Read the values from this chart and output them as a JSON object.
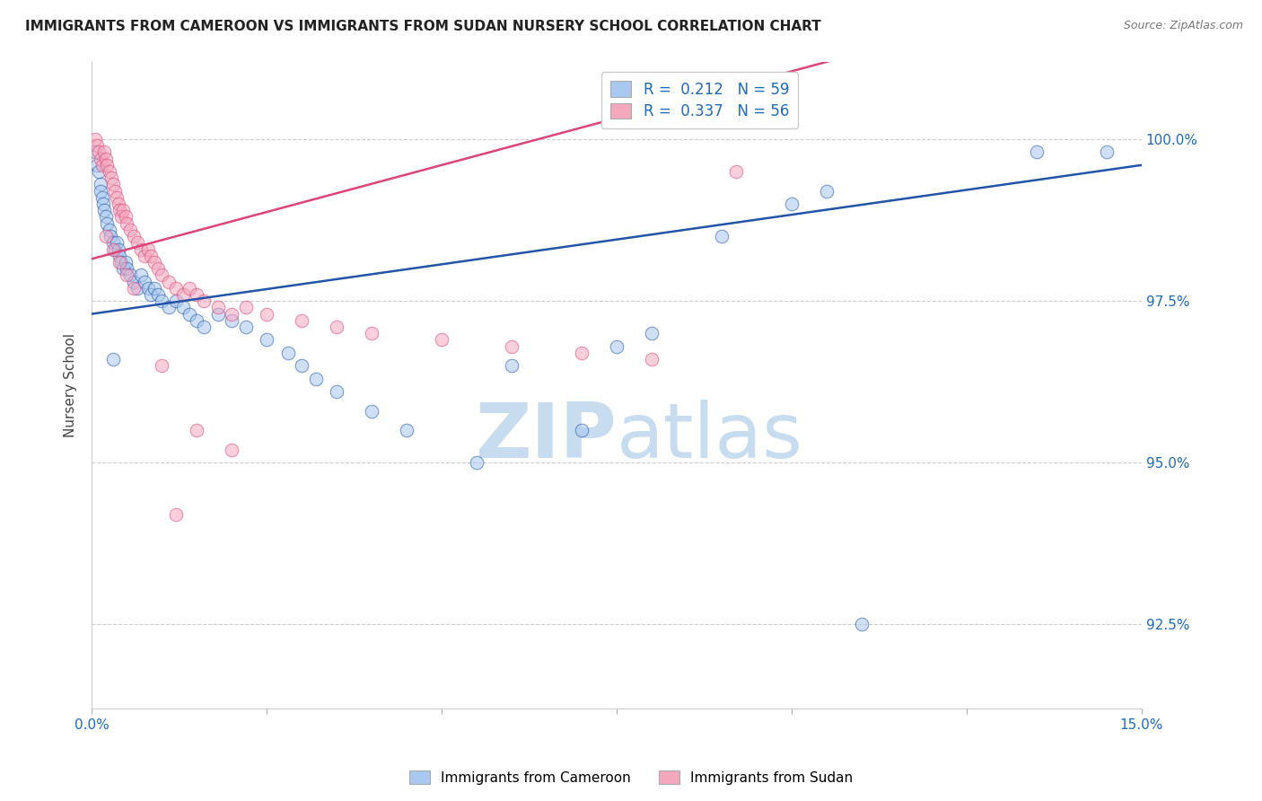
{
  "title": "IMMIGRANTS FROM CAMEROON VS IMMIGRANTS FROM SUDAN NURSERY SCHOOL CORRELATION CHART",
  "source": "Source: ZipAtlas.com",
  "ylabel": "Nursery School",
  "ytick_labels": [
    "92.5%",
    "95.0%",
    "97.5%",
    "100.0%"
  ],
  "ytick_values": [
    92.5,
    95.0,
    97.5,
    100.0
  ],
  "xmin": 0.0,
  "xmax": 15.0,
  "ymin": 91.2,
  "ymax": 101.2,
  "legend_blue_r_val": "0.212",
  "legend_blue_n_val": "59",
  "legend_pink_r_val": "0.337",
  "legend_pink_n_val": "56",
  "blue_color": "#A8C8F0",
  "pink_color": "#F4A8BE",
  "blue_line_color": "#2255AA",
  "pink_line_color": "#DD4477",
  "title_color": "#222222",
  "source_color": "#777777",
  "axis_label_color": "#1E6BB8",
  "grid_color": "#CCCCCC",
  "watermark_color": "#C8DCF0",
  "blue_scatter_x": [
    0.05,
    0.08,
    0.1,
    0.12,
    0.13,
    0.15,
    0.17,
    0.18,
    0.2,
    0.22,
    0.25,
    0.27,
    0.3,
    0.33,
    0.35,
    0.38,
    0.4,
    0.42,
    0.45,
    0.48,
    0.5,
    0.55,
    0.6,
    0.65,
    0.7,
    0.75,
    0.8,
    0.85,
    0.9,
    0.95,
    1.0,
    1.1,
    1.2,
    1.3,
    1.4,
    1.5,
    1.6,
    1.8,
    2.0,
    2.2,
    2.5,
    2.8,
    3.0,
    3.2,
    3.5,
    4.0,
    4.5,
    5.5,
    6.0,
    7.0,
    7.5,
    8.0,
    9.0,
    10.0,
    10.5,
    11.0,
    13.5,
    14.5,
    0.3
  ],
  "blue_scatter_y": [
    99.8,
    99.6,
    99.5,
    99.3,
    99.2,
    99.1,
    99.0,
    98.9,
    98.8,
    98.7,
    98.6,
    98.5,
    98.4,
    98.3,
    98.4,
    98.3,
    98.2,
    98.1,
    98.0,
    98.1,
    98.0,
    97.9,
    97.8,
    97.7,
    97.9,
    97.8,
    97.7,
    97.6,
    97.7,
    97.6,
    97.5,
    97.4,
    97.5,
    97.4,
    97.3,
    97.2,
    97.1,
    97.3,
    97.2,
    97.1,
    96.9,
    96.7,
    96.5,
    96.3,
    96.1,
    95.8,
    95.5,
    95.0,
    96.5,
    95.5,
    96.8,
    97.0,
    98.5,
    99.0,
    99.2,
    92.5,
    99.8,
    99.8,
    96.6
  ],
  "pink_scatter_x": [
    0.05,
    0.08,
    0.1,
    0.12,
    0.15,
    0.18,
    0.2,
    0.22,
    0.25,
    0.28,
    0.3,
    0.33,
    0.35,
    0.38,
    0.4,
    0.42,
    0.45,
    0.48,
    0.5,
    0.55,
    0.6,
    0.65,
    0.7,
    0.75,
    0.8,
    0.85,
    0.9,
    0.95,
    1.0,
    1.1,
    1.2,
    1.3,
    1.4,
    1.5,
    1.6,
    1.8,
    2.0,
    2.2,
    2.5,
    3.0,
    3.5,
    4.0,
    5.0,
    6.0,
    7.0,
    8.0,
    9.2,
    0.2,
    0.3,
    0.4,
    0.5,
    0.6,
    1.0,
    1.5,
    2.0,
    1.2
  ],
  "pink_scatter_y": [
    100.0,
    99.9,
    99.8,
    99.7,
    99.6,
    99.8,
    99.7,
    99.6,
    99.5,
    99.4,
    99.3,
    99.2,
    99.1,
    99.0,
    98.9,
    98.8,
    98.9,
    98.8,
    98.7,
    98.6,
    98.5,
    98.4,
    98.3,
    98.2,
    98.3,
    98.2,
    98.1,
    98.0,
    97.9,
    97.8,
    97.7,
    97.6,
    97.7,
    97.6,
    97.5,
    97.4,
    97.3,
    97.4,
    97.3,
    97.2,
    97.1,
    97.0,
    96.9,
    96.8,
    96.7,
    96.6,
    99.5,
    98.5,
    98.3,
    98.1,
    97.9,
    97.7,
    96.5,
    95.5,
    95.2,
    94.2
  ]
}
